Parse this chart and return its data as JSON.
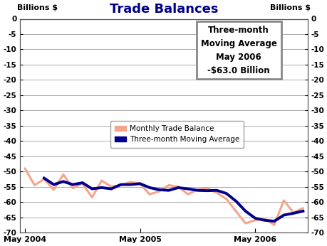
{
  "title": "Trade Balances",
  "title_color": "#00008B",
  "ylabel_left": "Billions $",
  "ylabel_right": "Billions $",
  "xlabel_ticks": [
    "May 2004",
    "May 2005",
    "May 2006"
  ],
  "ylim": [
    -70,
    0
  ],
  "yticks": [
    0,
    -5,
    -10,
    -15,
    -20,
    -25,
    -30,
    -35,
    -40,
    -45,
    -50,
    -55,
    -60,
    -65,
    -70
  ],
  "bg_color": "#ffffff",
  "plot_bg_color": "#ffffff",
  "grid_color": "#aaaaaa",
  "monthly_color": "#F4A58A",
  "ma_color": "#00008B",
  "annotation_text": "Three-month\nMoving Average\nMay 2006\n-$63.0 Billion",
  "monthly_values": [
    -49.0,
    -54.5,
    -52.5,
    -56.0,
    -51.0,
    -55.5,
    -54.0,
    -58.5,
    -53.0,
    -55.0,
    -54.5,
    -53.5,
    -54.0,
    -57.5,
    -56.5,
    -54.5,
    -55.0,
    -57.5,
    -56.0,
    -55.5,
    -57.0,
    -59.0,
    -63.0,
    -67.0,
    -66.0,
    -65.5,
    -67.5,
    -59.5,
    -63.5,
    -62.0
  ],
  "ma_values": [
    null,
    null,
    -52.2,
    -54.3,
    -53.3,
    -54.3,
    -53.7,
    -55.7,
    -55.3,
    -55.7,
    -54.3,
    -54.3,
    -54.0,
    -55.3,
    -56.0,
    -56.2,
    -55.3,
    -55.7,
    -56.2,
    -56.3,
    -56.2,
    -57.2,
    -59.7,
    -63.0,
    -65.3,
    -66.0,
    -66.3,
    -64.3,
    -63.7,
    -63.0
  ]
}
